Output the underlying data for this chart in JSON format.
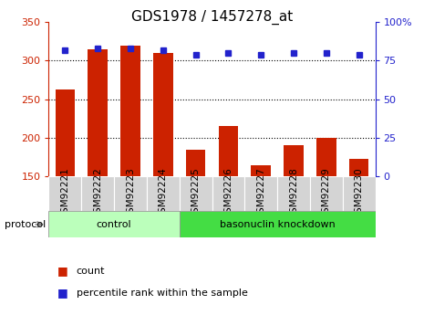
{
  "title": "GDS1978 / 1457278_at",
  "samples": [
    "GSM92221",
    "GSM92222",
    "GSM92223",
    "GSM92224",
    "GSM92225",
    "GSM92226",
    "GSM92227",
    "GSM92228",
    "GSM92229",
    "GSM92230"
  ],
  "counts": [
    263,
    315,
    320,
    310,
    185,
    215,
    165,
    190,
    200,
    173
  ],
  "percentile_ranks": [
    82,
    83,
    83,
    82,
    79,
    80,
    79,
    80,
    80,
    79
  ],
  "bar_color": "#cc2200",
  "dot_color": "#2222cc",
  "ylim_left": [
    150,
    350
  ],
  "ylim_right": [
    0,
    100
  ],
  "yticks_left": [
    150,
    200,
    250,
    300,
    350
  ],
  "yticks_right": [
    0,
    25,
    50,
    75,
    100
  ],
  "ytick_labels_right": [
    "0",
    "25",
    "50",
    "75",
    "100%"
  ],
  "grid_values": [
    200,
    250,
    300
  ],
  "bg_color": "#ffffff",
  "label_box_color": "#d4d4d4",
  "control_color": "#bbffbb",
  "knockdown_color": "#44dd44",
  "protocol_label": "protocol",
  "legend_count": "count",
  "legend_pct": "percentile rank within the sample",
  "title_fontsize": 11,
  "tick_fontsize": 8,
  "label_fontsize": 7.5,
  "proto_fontsize": 8,
  "legend_fontsize": 8
}
